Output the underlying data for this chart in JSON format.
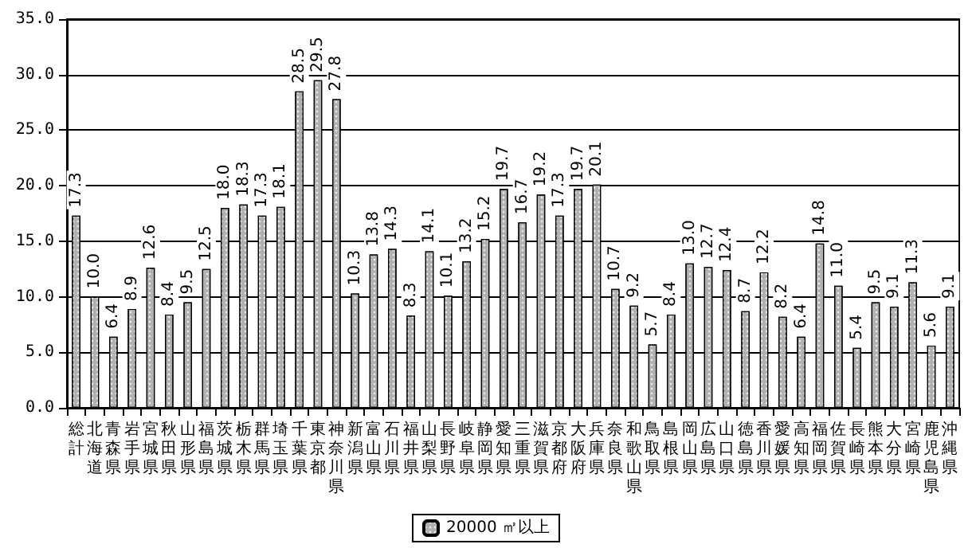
{
  "chart_data": {
    "type": "bar",
    "categories": [
      "総計",
      "北海道",
      "青森県",
      "岩手県",
      "宮城県",
      "秋田県",
      "山形県",
      "福島県",
      "茨城県",
      "栃木県",
      "群馬県",
      "埼玉県",
      "千葉県",
      "東京都",
      "神奈川県",
      "新潟県",
      "富山県",
      "石川県",
      "福井県",
      "山梨県",
      "長野県",
      "岐阜県",
      "静岡県",
      "愛知県",
      "三重県",
      "滋賀県",
      "京都府",
      "大阪府",
      "兵庫県",
      "奈良県",
      "和歌山県",
      "鳥取県",
      "島根県",
      "岡山県",
      "広島県",
      "山口県",
      "徳島県",
      "香川県",
      "愛媛県",
      "高知県",
      "福岡県",
      "佐賀県",
      "長崎県",
      "熊本県",
      "大分県",
      "宮崎県",
      "鹿児島県",
      "沖縄県"
    ],
    "series": [
      {
        "name": "20000 ㎡以上",
        "color": "#b0b0b0",
        "values": [
          17.3,
          10.0,
          6.4,
          8.9,
          12.6,
          8.4,
          9.5,
          12.5,
          18.0,
          18.3,
          17.3,
          18.1,
          28.5,
          29.5,
          27.8,
          10.3,
          13.8,
          14.3,
          8.3,
          14.1,
          10.1,
          13.2,
          15.2,
          19.7,
          16.7,
          19.2,
          17.3,
          19.7,
          20.1,
          10.7,
          9.2,
          5.7,
          8.4,
          13.0,
          12.7,
          12.4,
          8.7,
          12.2,
          8.2,
          6.4,
          14.8,
          11.0,
          5.4,
          9.5,
          9.1,
          11.3,
          5.6,
          9.1
        ],
        "value_labels": [
          "17.3",
          "10.0",
          "6.4",
          "8.9",
          "12.6",
          "8.4",
          "9.5",
          "12.5",
          "18.0",
          "18.3",
          "17.3",
          "18.1",
          "28.5",
          "29.5",
          "27.8",
          "10.3",
          "13.8",
          "14.3",
          "8.3",
          "14.1",
          "10.1",
          "13.2",
          "15.2",
          "19.7",
          "16.7",
          "19.2",
          "17.3",
          "19.7",
          "20.1",
          "10.7",
          "9.2",
          "5.7",
          "8.4",
          "13.0",
          "12.7",
          "12.4",
          "8.7",
          "12.2",
          "8.2",
          "6.4",
          "14.8",
          "11.0",
          "5.4",
          "9.5",
          "9.1",
          "11.3",
          "5.6",
          "9.1"
        ]
      }
    ],
    "ylim": [
      0,
      35
    ],
    "yticks": [
      {
        "value": 0,
        "label": "0.0"
      },
      {
        "value": 5,
        "label": "5.0"
      },
      {
        "value": 10,
        "label": "10.0"
      },
      {
        "value": 15,
        "label": "15.0"
      },
      {
        "value": 20,
        "label": "20.0"
      },
      {
        "value": 25,
        "label": "25.0"
      },
      {
        "value": 30,
        "label": "30.0"
      },
      {
        "value": 35,
        "label": "35.0"
      }
    ],
    "grid": "y",
    "legend": "bottom"
  }
}
